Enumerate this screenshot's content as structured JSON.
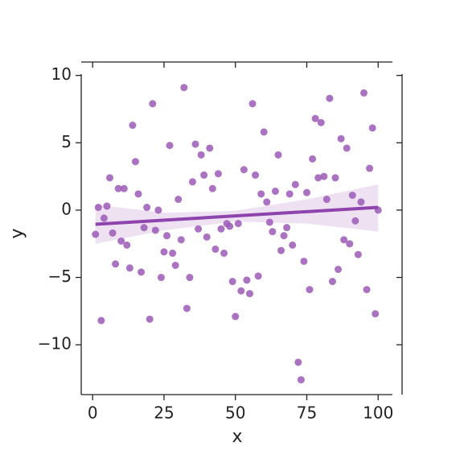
{
  "chart_data": {
    "type": "scatter",
    "x_label": "x",
    "y_label": "y",
    "x": [
      1,
      2,
      3,
      4,
      5,
      6,
      7,
      8,
      9,
      10,
      11,
      12,
      13,
      14,
      15,
      16,
      17,
      18,
      19,
      20,
      21,
      22,
      23,
      24,
      25,
      26,
      27,
      28,
      29,
      30,
      31,
      32,
      33,
      34,
      35,
      36,
      37,
      38,
      39,
      40,
      41,
      42,
      43,
      44,
      45,
      46,
      47,
      48,
      49,
      50,
      51,
      52,
      53,
      54,
      55,
      56,
      57,
      58,
      59,
      60,
      61,
      62,
      63,
      64,
      65,
      66,
      67,
      68,
      69,
      70,
      71,
      72,
      73,
      74,
      75,
      76,
      77,
      78,
      79,
      80,
      81,
      82,
      83,
      84,
      85,
      86,
      87,
      88,
      89,
      90,
      91,
      92,
      93,
      94,
      95,
      96,
      97,
      98,
      99,
      100
    ],
    "values": [
      -1.8,
      0.2,
      -8.2,
      -0.6,
      0.3,
      2.4,
      -1.7,
      -4.0,
      1.6,
      -2.3,
      1.6,
      -2.6,
      -4.3,
      6.3,
      3.6,
      1.2,
      -4.6,
      -1.3,
      0.2,
      -8.1,
      7.9,
      -1.5,
      0.0,
      -5.0,
      -3.1,
      -1.9,
      4.8,
      -3.2,
      -4.1,
      0.8,
      -2.2,
      9.1,
      -7.3,
      -5.0,
      2.1,
      4.9,
      -1.4,
      4.1,
      2.6,
      -2.0,
      4.6,
      1.6,
      -2.9,
      2.7,
      -1.4,
      -3.2,
      -1.0,
      -1.2,
      -5.3,
      -7.9,
      -1.0,
      -6.0,
      3.0,
      -5.2,
      -6.2,
      7.9,
      2.6,
      -4.9,
      1.2,
      5.8,
      0.6,
      -0.9,
      -1.6,
      1.4,
      4.1,
      -3.0,
      -1.9,
      -1.3,
      1.2,
      -2.6,
      1.9,
      -11.3,
      -12.6,
      -3.8,
      1.3,
      -5.9,
      3.8,
      6.8,
      2.4,
      6.5,
      2.5,
      0.8,
      8.3,
      -5.3,
      2.4,
      -4.4,
      5.3,
      -2.2,
      4.6,
      -2.5,
      1.1,
      -0.8,
      -3.3,
      0.6,
      8.7,
      -5.9,
      3.1,
      6.1,
      -7.7,
      0.0
    ],
    "color": "#9b59b6",
    "fit": {
      "x": [
        1,
        100
      ],
      "y": [
        -1.05,
        0.2
      ],
      "color": "#8e44ad"
    },
    "ci": {
      "x": [
        1,
        25,
        50,
        75,
        100
      ],
      "lower": [
        -2.5,
        -1.5,
        -0.85,
        -1.0,
        -1.6
      ],
      "upper": [
        0.4,
        -0.2,
        -0.05,
        0.8,
        1.9
      ]
    },
    "xlim": [
      -4,
      105
    ],
    "ylim": [
      -13.7,
      10.1
    ],
    "xticks": [
      0,
      25,
      50,
      75,
      100
    ],
    "yticks": [
      {
        "value": -10,
        "label": "−10"
      },
      {
        "value": -5,
        "label": "−5"
      },
      0,
      5,
      10
    ]
  }
}
